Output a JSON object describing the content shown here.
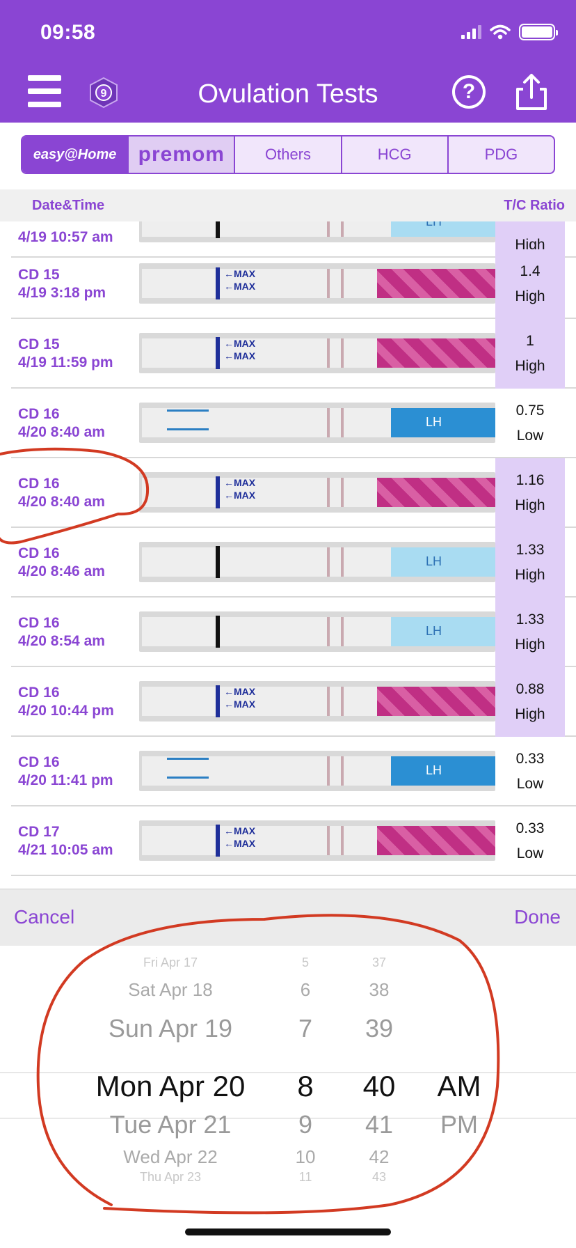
{
  "status_bar": {
    "time": "09:58"
  },
  "header": {
    "title": "Ovulation Tests",
    "badge_number": "9",
    "help_label": "?"
  },
  "brand_tabs": [
    {
      "label": "easy@Home",
      "state": "selected"
    },
    {
      "label": "premom"
    },
    {
      "label": "Others"
    },
    {
      "label": "HCG"
    },
    {
      "label": "PDG"
    }
  ],
  "table_header": {
    "date_time": "Date&Time",
    "ratio": "T/C Ratio"
  },
  "rows": [
    {
      "day": "4/19 10:57 am",
      "date": "",
      "ratio": "",
      "level": "High",
      "high": true,
      "strip": "lightblue"
    },
    {
      "day": "CD 15",
      "date": "4/19 3:18 pm",
      "ratio": "1.4",
      "level": "High",
      "high": true,
      "strip": "pink"
    },
    {
      "day": "CD 15",
      "date": "4/19 11:59 pm",
      "ratio": "1",
      "level": "High",
      "high": true,
      "strip": "pink"
    },
    {
      "day": "CD 16",
      "date": "4/20 8:40 am",
      "ratio": "0.75",
      "level": "Low",
      "high": false,
      "strip": "blue"
    },
    {
      "day": "CD 16",
      "date": "4/20 8:40 am",
      "ratio": "1.16",
      "level": "High",
      "high": true,
      "strip": "pink"
    },
    {
      "day": "CD 16",
      "date": "4/20 8:46 am",
      "ratio": "1.33",
      "level": "High",
      "high": true,
      "strip": "lightblue"
    },
    {
      "day": "CD 16",
      "date": "4/20 8:54 am",
      "ratio": "1.33",
      "level": "High",
      "high": true,
      "strip": "lightblue"
    },
    {
      "day": "CD 16",
      "date": "4/20 10:44 pm",
      "ratio": "0.88",
      "level": "High",
      "high": true,
      "strip": "pink"
    },
    {
      "day": "CD 16",
      "date": "4/20 11:41 pm",
      "ratio": "0.33",
      "level": "Low",
      "high": false,
      "strip": "blue"
    },
    {
      "day": "CD 17",
      "date": "4/21 10:05 am",
      "ratio": "0.33",
      "level": "Low",
      "high": false,
      "strip": "pink"
    }
  ],
  "picker_bar": {
    "cancel": "Cancel",
    "done": "Done"
  },
  "picker": {
    "dates": [
      "Fri Apr 17",
      "Sat Apr 18",
      "Sun Apr 19",
      "Mon Apr 20",
      "Tue Apr 21",
      "Wed Apr 22",
      "Thu Apr 23"
    ],
    "hours": [
      "5",
      "6",
      "7",
      "8",
      "9",
      "10",
      "11"
    ],
    "minutes": [
      "37",
      "38",
      "39",
      "40",
      "41",
      "42",
      "43"
    ],
    "ampm": [
      "AM",
      "PM"
    ],
    "selected": {
      "date": "Mon Apr 20",
      "hour": "8",
      "minute": "40",
      "ampm": "AM"
    }
  },
  "colors": {
    "accent": "#8a45d3",
    "high_bg": "#e0cff7",
    "annotation": "#d23a22"
  }
}
